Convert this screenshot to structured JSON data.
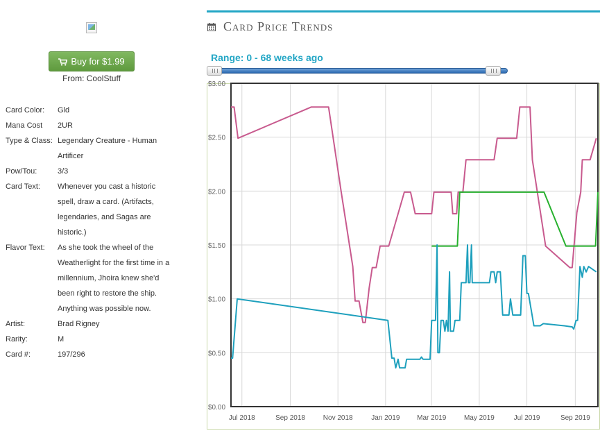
{
  "buy": {
    "label": "Buy for $1.99",
    "from": "From: CoolStuff"
  },
  "details": [
    {
      "label": "Card Color:",
      "value": "Gld"
    },
    {
      "label": "Mana Cost",
      "value": "2UR"
    },
    {
      "label": "Type & Class:",
      "value": "Legendary Creature - Human Artificer"
    },
    {
      "label": "Pow/Tou:",
      "value": "3/3"
    },
    {
      "label": "Card Text:",
      "value": "Whenever you cast a historic spell, draw a card. (Artifacts, legendaries, and Sagas are historic.)"
    },
    {
      "label": "Flavor Text:",
      "value": "As she took the wheel of the Weatherlight for the first time in a millennium, Jhoira knew she'd been right to restore the ship. Anything was possible now."
    },
    {
      "label": "Artist:",
      "value": "Brad Rigney"
    },
    {
      "label": "Rarity:",
      "value": "M"
    },
    {
      "label": "Card #:",
      "value": "197/296"
    }
  ],
  "section": {
    "title": "Card Price Trends",
    "range_label": "Range: 0 - 68 weeks ago"
  },
  "slider": {
    "min_weeks": 0,
    "max_weeks": 68,
    "low_fraction": 0.0,
    "high_fraction": 0.98
  },
  "icons": {
    "buy": "cart-icon",
    "section": "calendar-icon"
  },
  "colors": {
    "accent": "#23a6c5",
    "button": "#6ea84d",
    "series_pink": "#c85a8e",
    "series_green": "#27b12e",
    "series_teal": "#1ea0bd"
  },
  "chart_data": {
    "type": "line",
    "x_type": "date",
    "xlim": [
      "2018-06-17",
      "2019-09-30"
    ],
    "ylim": [
      0,
      3
    ],
    "yticks": [
      "$0.00",
      "$0.50",
      "$1.00",
      "$1.50",
      "$2.00",
      "$2.50",
      "$3.00"
    ],
    "ytick_values": [
      0,
      0.5,
      1,
      1.5,
      2,
      2.5,
      3
    ],
    "xticks": [
      {
        "date": "2018-07-01",
        "label": "Jul 2018"
      },
      {
        "date": "2018-09-01",
        "label": "Sep 2018"
      },
      {
        "date": "2018-11-01",
        "label": "Nov 2018"
      },
      {
        "date": "2019-01-01",
        "label": "Jan 2019"
      },
      {
        "date": "2019-03-01",
        "label": "Mar 2019"
      },
      {
        "date": "2019-05-01",
        "label": "May 2019"
      },
      {
        "date": "2019-07-01",
        "label": "Jul 2019"
      },
      {
        "date": "2019-09-01",
        "label": "Sep 2019"
      }
    ],
    "grid": true,
    "series": [
      {
        "color": "#c85a8e",
        "points": [
          [
            "2018-06-17",
            2.78
          ],
          [
            "2018-06-21",
            2.78
          ],
          [
            "2018-06-26",
            2.49
          ],
          [
            "2018-09-28",
            2.78
          ],
          [
            "2018-10-20",
            2.78
          ],
          [
            "2018-11-05",
            2.0
          ],
          [
            "2018-11-20",
            1.3
          ],
          [
            "2018-11-23",
            0.98
          ],
          [
            "2018-11-28",
            0.98
          ],
          [
            "2018-12-03",
            0.78
          ],
          [
            "2018-12-06",
            0.78
          ],
          [
            "2018-12-11",
            1.1
          ],
          [
            "2018-12-15",
            1.29
          ],
          [
            "2018-12-20",
            1.29
          ],
          [
            "2018-12-25",
            1.49
          ],
          [
            "2019-01-05",
            1.49
          ],
          [
            "2019-01-25",
            1.99
          ],
          [
            "2019-02-02",
            1.99
          ],
          [
            "2019-02-08",
            1.79
          ],
          [
            "2019-03-01",
            1.79
          ],
          [
            "2019-03-04",
            1.99
          ],
          [
            "2019-03-26",
            1.99
          ],
          [
            "2019-03-28",
            1.79
          ],
          [
            "2019-04-02",
            1.79
          ],
          [
            "2019-04-04",
            1.99
          ],
          [
            "2019-04-10",
            1.99
          ],
          [
            "2019-04-14",
            2.29
          ],
          [
            "2019-05-20",
            2.29
          ],
          [
            "2019-05-24",
            2.49
          ],
          [
            "2019-06-18",
            2.49
          ],
          [
            "2019-06-22",
            2.78
          ],
          [
            "2019-07-05",
            2.78
          ],
          [
            "2019-07-08",
            2.29
          ],
          [
            "2019-07-25",
            1.49
          ],
          [
            "2019-08-25",
            1.29
          ],
          [
            "2019-08-28",
            1.29
          ],
          [
            "2019-09-03",
            1.8
          ],
          [
            "2019-09-08",
            1.99
          ],
          [
            "2019-09-10",
            2.29
          ],
          [
            "2019-09-20",
            2.29
          ],
          [
            "2019-09-28",
            2.49
          ]
        ]
      },
      {
        "color": "#27b12e",
        "points": [
          [
            "2019-03-01",
            1.49
          ],
          [
            "2019-04-03",
            1.49
          ],
          [
            "2019-04-06",
            1.99
          ],
          [
            "2019-07-23",
            1.99
          ],
          [
            "2019-08-20",
            1.49
          ],
          [
            "2019-09-27",
            1.49
          ],
          [
            "2019-09-30",
            1.99
          ]
        ]
      },
      {
        "color": "#1ea0bd",
        "points": [
          [
            "2018-06-17",
            0.45
          ],
          [
            "2018-06-19",
            0.45
          ],
          [
            "2018-06-25",
            1.0
          ],
          [
            "2019-01-04",
            0.8
          ],
          [
            "2019-01-09",
            0.45
          ],
          [
            "2019-01-12",
            0.45
          ],
          [
            "2019-01-14",
            0.36
          ],
          [
            "2019-01-17",
            0.44
          ],
          [
            "2019-01-19",
            0.36
          ],
          [
            "2019-01-26",
            0.36
          ],
          [
            "2019-01-28",
            0.44
          ],
          [
            "2019-02-14",
            0.44
          ],
          [
            "2019-02-16",
            0.46
          ],
          [
            "2019-02-18",
            0.44
          ],
          [
            "2019-02-27",
            0.44
          ],
          [
            "2019-03-01",
            0.8
          ],
          [
            "2019-03-06",
            0.8
          ],
          [
            "2019-03-08",
            1.5
          ],
          [
            "2019-03-09",
            0.5
          ],
          [
            "2019-03-11",
            0.5
          ],
          [
            "2019-03-13",
            0.8
          ],
          [
            "2019-03-16",
            0.8
          ],
          [
            "2019-03-18",
            0.7
          ],
          [
            "2019-03-20",
            0.8
          ],
          [
            "2019-03-22",
            0.7
          ],
          [
            "2019-03-24",
            1.25
          ],
          [
            "2019-03-25",
            0.7
          ],
          [
            "2019-03-29",
            0.7
          ],
          [
            "2019-03-31",
            0.8
          ],
          [
            "2019-04-06",
            0.8
          ],
          [
            "2019-04-08",
            1.15
          ],
          [
            "2019-04-14",
            1.15
          ],
          [
            "2019-04-16",
            1.5
          ],
          [
            "2019-04-17",
            1.15
          ],
          [
            "2019-04-19",
            1.15
          ],
          [
            "2019-04-21",
            1.5
          ],
          [
            "2019-04-22",
            1.15
          ],
          [
            "2019-05-14",
            1.15
          ],
          [
            "2019-05-16",
            1.25
          ],
          [
            "2019-05-20",
            1.25
          ],
          [
            "2019-05-22",
            1.15
          ],
          [
            "2019-05-24",
            1.25
          ],
          [
            "2019-05-28",
            1.25
          ],
          [
            "2019-05-31",
            0.85
          ],
          [
            "2019-06-08",
            0.85
          ],
          [
            "2019-06-10",
            1.0
          ],
          [
            "2019-06-13",
            0.85
          ],
          [
            "2019-06-23",
            0.85
          ],
          [
            "2019-06-26",
            1.4
          ],
          [
            "2019-06-29",
            1.4
          ],
          [
            "2019-07-01",
            1.05
          ],
          [
            "2019-07-03",
            1.05
          ],
          [
            "2019-07-10",
            0.75
          ],
          [
            "2019-07-18",
            0.75
          ],
          [
            "2019-07-22",
            0.77
          ],
          [
            "2019-08-18",
            0.75
          ],
          [
            "2019-08-28",
            0.74
          ],
          [
            "2019-08-30",
            0.72
          ],
          [
            "2019-09-02",
            0.8
          ],
          [
            "2019-09-04",
            0.8
          ],
          [
            "2019-09-07",
            1.3
          ],
          [
            "2019-09-10",
            1.2
          ],
          [
            "2019-09-12",
            1.3
          ],
          [
            "2019-09-15",
            1.25
          ],
          [
            "2019-09-18",
            1.3
          ],
          [
            "2019-09-28",
            1.25
          ]
        ]
      }
    ]
  }
}
